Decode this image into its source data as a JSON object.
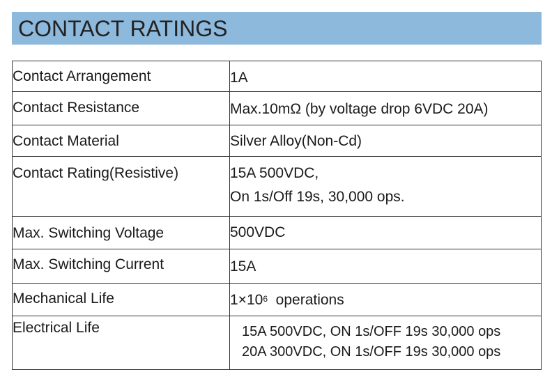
{
  "title": "CONTACT RATINGS",
  "rows": [
    {
      "label": "Contact Arrangement",
      "value_lines": [
        "1A"
      ]
    },
    {
      "label": "Contact Resistance",
      "value_lines": [
        "Max.10mΩ (by voltage drop 6VDC 20A)"
      ]
    },
    {
      "label": "Contact Material",
      "value_lines": [
        "Silver Alloy(Non-Cd)"
      ]
    },
    {
      "label": "Contact Rating(Resistive)",
      "value_lines": [
        "15A 500VDC,",
        "On 1s/Off 19s, 30,000 ops."
      ]
    },
    {
      "label": "Max. Switching Voltage",
      "value_lines": [
        "500VDC"
      ]
    },
    {
      "label": "Max. Switching Current",
      "value_lines": [
        "15A"
      ]
    },
    {
      "label": "Mechanical Life",
      "value_base": "1×10",
      "value_exp": "6",
      "value_suffix": "operations"
    },
    {
      "label": "Electrical Life",
      "value_lines": [
        "15A 500VDC, ON 1s/OFF 19s 30,000 ops",
        "20A 300VDC, ON 1s/OFF 19s 30,000 ops"
      ]
    }
  ]
}
